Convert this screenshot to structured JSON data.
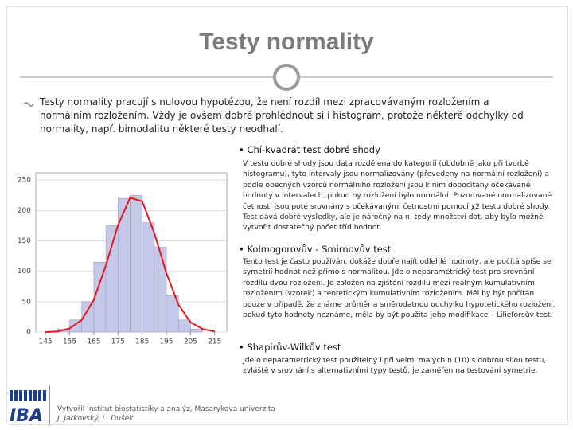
{
  "header": {
    "title": "Testy normality"
  },
  "intro": "Testy normality pracují s nulovou hypotézou, že není rozdíl mezi zpracovávaným rozložením a normálním rozložením. Vždy je ovšem dobré prohlédnout si i histogram, protože některé odchylky od normality, např. bimodalitu některé testy neodhalí.",
  "sections": [
    {
      "heading": "Chí-kvadrát test dobré shody",
      "text": "V testu dobré shody jsou data rozdělena do kategorií (obdobně jako při tvorbě histogramu), tyto intervaly jsou normalizovány (převedeny na normální rozložení) a podle obecných vzorců normálního rozložení jsou k nim dopočítány očekávané hodnoty v intervalech, pokud by rozložení bylo normální. Pozorované normalizované četnosti jsou poté srovnány s očekávanými četnostmi pomocí χ2 testu dobré shody. Test dává dobré výsledky, ale je náročný na n, tedy množství dat, aby bylo možné vytvořit dostatečný počet tříd hodnot."
    },
    {
      "heading": "Kolmogorovův - Smirnovův test",
      "text": "Tento test je často používán, dokáže dobře najít odlehlé hodnoty, ale počítá spíše se symetrií hodnot než přímo s normalitou. Jde o neparametrický test pro srovnání rozdílu dvou rozložení. Je založen na zjištění rozdílu mezi reálným kumulativním rozložením (vzorek) a teoretickým kumulativním rozložením. Měl by být počítán pouze v případě, že známe průměr a směrodatnou odchylku hypotetického rozložení, pokud tyto hodnoty neznáme, měla by být použita jeho modifikace – Lilieforsův test."
    },
    {
      "heading": "Shapirův-Wilkův test",
      "text": "Jde o neparametrický test použitelný i při velmi malých n (10) s dobrou silou testu, zvláště v srovnání s alternativními typy testů, je zaměřen na testování symetrie."
    }
  ],
  "histogram": {
    "type": "histogram",
    "bins": [
      150,
      155,
      160,
      165,
      170,
      175,
      180,
      185,
      190,
      195,
      200,
      205,
      210
    ],
    "values": [
      5,
      20,
      50,
      115,
      175,
      220,
      225,
      180,
      140,
      60,
      20,
      5
    ],
    "color": "#c6c8e8",
    "curve": {
      "color": "#e8161b",
      "x": [
        145,
        150,
        155,
        160,
        165,
        170,
        175,
        180,
        185,
        190,
        195,
        200,
        205,
        210,
        215
      ],
      "values": [
        0,
        1,
        6,
        20,
        53,
        110,
        176,
        221,
        215,
        163,
        97,
        45,
        16,
        5,
        1
      ]
    },
    "xlim": [
      141,
      220
    ],
    "ylim": [
      0,
      262
    ],
    "xticks": [
      145,
      155,
      165,
      175,
      185,
      195,
      205,
      215
    ],
    "yticks": [
      0,
      50,
      100,
      150,
      200,
      250
    ],
    "grid": true
  },
  "footer": {
    "logo": "IBA",
    "line1": "Vytvořil Institut biostatistiky a analýz, Masarykova univerzita",
    "line2": "J. Jarkovský, L. Dušek"
  }
}
